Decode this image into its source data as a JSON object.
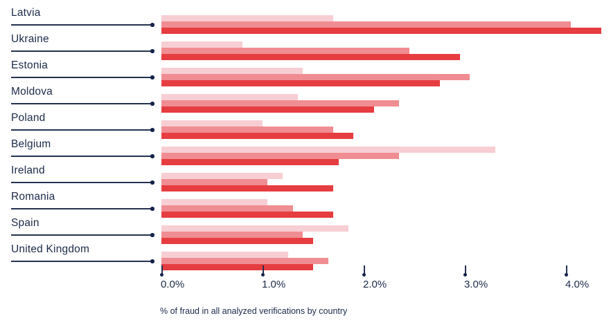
{
  "chart_data": {
    "type": "bar",
    "orientation": "horizontal",
    "title": "",
    "xlabel": "% of fraud in all analyzed verifications by country",
    "ylabel": "",
    "x_ticks": [
      "0.0%",
      "1.0%",
      "2.0%",
      "3.0%",
      "4.0%"
    ],
    "x_tick_values": [
      0.0,
      1.0,
      2.0,
      3.0,
      4.0
    ],
    "xlim": [
      0,
      4.45
    ],
    "grid": false,
    "legend": "none",
    "categories": [
      "Latvia",
      "Ukraine",
      "Estonia",
      "Moldova",
      "Poland",
      "Belgium",
      "Ireland",
      "Romania",
      "Spain",
      "United Kingdom"
    ],
    "series": [
      {
        "name": "series-light",
        "color": "#f7ced3",
        "values": [
          1.7,
          0.8,
          1.4,
          1.35,
          1.0,
          3.3,
          1.2,
          1.05,
          1.85,
          1.25
        ]
      },
      {
        "name": "series-medium",
        "color": "#f08d92",
        "values": [
          4.05,
          2.45,
          3.05,
          2.35,
          1.7,
          2.35,
          1.05,
          1.3,
          1.4,
          1.65
        ]
      },
      {
        "name": "series-dark",
        "color": "#e63d41",
        "values": [
          4.35,
          2.95,
          2.75,
          2.1,
          1.9,
          1.75,
          1.7,
          1.7,
          1.5,
          1.5
        ]
      }
    ]
  },
  "caption": "% of fraud in all analyzed verifications by country",
  "colors": {
    "text_navy": "#1b2949",
    "leader_line": "#23304f",
    "bar_light": "#f7ced3",
    "bar_medium": "#f08d92",
    "bar_dark": "#e63d41",
    "background": "#ffffff"
  }
}
